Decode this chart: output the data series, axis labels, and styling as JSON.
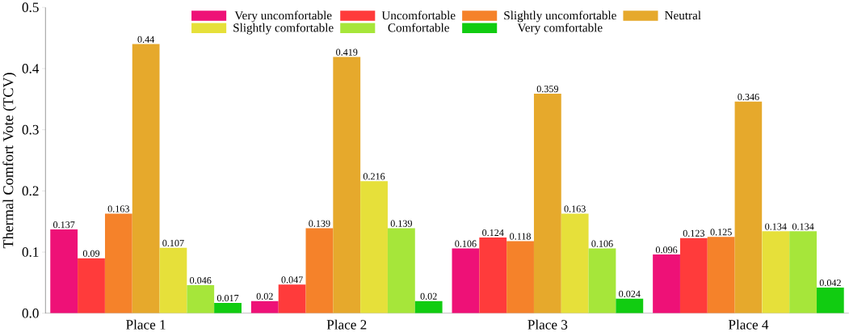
{
  "chart_data": {
    "type": "bar",
    "ylabel": "Thermal Comfort Vote (TCV)",
    "categories": [
      "Place 1",
      "Place 2",
      "Place 3",
      "Place 4"
    ],
    "series": [
      {
        "name": "Very uncomfortable",
        "color": "#ee1177",
        "values": [
          0.137,
          0.02,
          0.106,
          0.096
        ]
      },
      {
        "name": "Uncomfortable",
        "color": "#ff3b3b",
        "values": [
          0.09,
          0.047,
          0.124,
          0.123
        ]
      },
      {
        "name": "Slightly uncomfortable",
        "color": "#f5822a",
        "values": [
          0.163,
          0.139,
          0.118,
          0.125
        ]
      },
      {
        "name": "Neutral",
        "color": "#e6a92c",
        "values": [
          0.44,
          0.419,
          0.359,
          0.346
        ]
      },
      {
        "name": "Slightly comfortable",
        "color": "#e6e03a",
        "values": [
          0.107,
          0.216,
          0.163,
          0.134
        ]
      },
      {
        "name": "Comfortable",
        "color": "#a6e63a",
        "values": [
          0.046,
          0.139,
          0.106,
          0.134
        ]
      },
      {
        "name": "Very comfortable",
        "color": "#11cc11",
        "values": [
          0.017,
          0.02,
          0.024,
          0.042
        ]
      }
    ],
    "ylim": [
      0,
      0.5
    ],
    "yticks": [
      {
        "value": 0,
        "label": "0.0"
      },
      0.1,
      0.2,
      0.3,
      0.4,
      0.5
    ],
    "data_labels": true,
    "legend": "top",
    "grid": false
  }
}
